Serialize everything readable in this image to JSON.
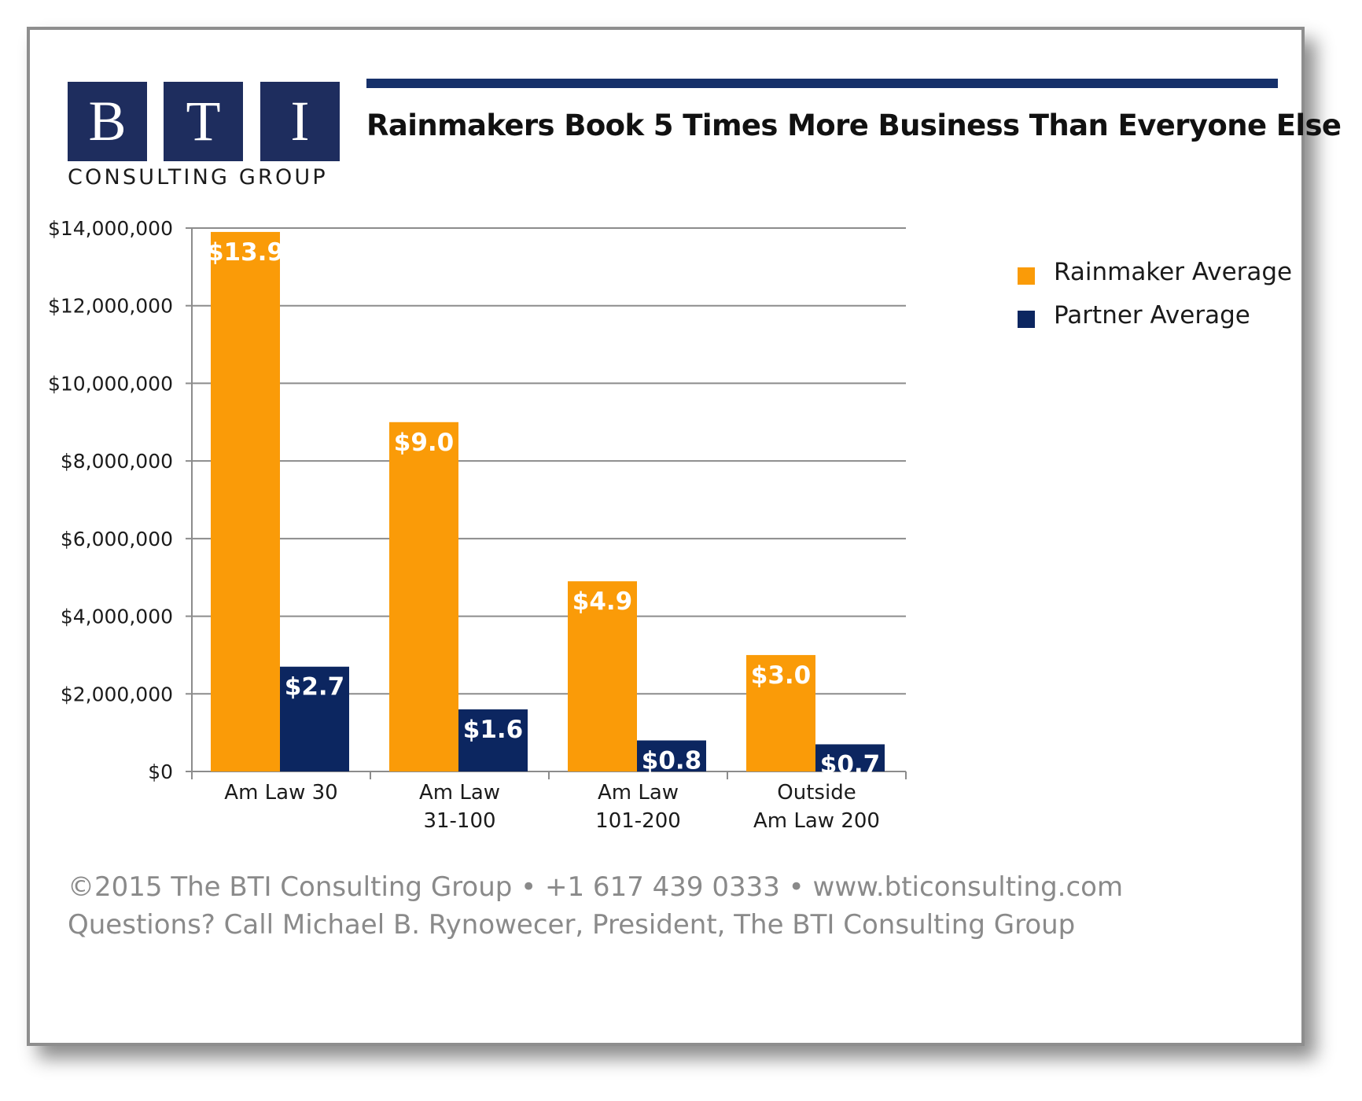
{
  "logo": {
    "letters": [
      "B",
      "T",
      "I"
    ],
    "subtitle": "CONSULTING GROUP",
    "box_color": "#1e2d5e"
  },
  "title": "Rainmakers Book 5 Times More Business Than Everyone Else",
  "chart_data": {
    "type": "bar",
    "title": "Rainmakers Book 5 Times More Business Than Everyone Else",
    "categories": [
      [
        "Am Law 30"
      ],
      [
        "Am Law",
        "31-100"
      ],
      [
        "Am Law",
        "101-200"
      ],
      [
        "Outside",
        "Am Law 200"
      ]
    ],
    "series": [
      {
        "name": "Rainmaker Average",
        "color": "#fa9b08",
        "values": [
          13900000,
          9000000,
          4900000,
          3000000
        ],
        "labels": [
          "$13.9",
          "$9.0",
          "$4.9",
          "$3.0"
        ]
      },
      {
        "name": "Partner Average",
        "color": "#0c2660",
        "values": [
          2700000,
          1600000,
          800000,
          700000
        ],
        "labels": [
          "$2.7",
          "$1.6",
          "$0.8",
          "$0.7"
        ]
      }
    ],
    "ylim": [
      0,
      14000000
    ],
    "yticks": [
      0,
      2000000,
      4000000,
      6000000,
      8000000,
      10000000,
      12000000,
      14000000
    ],
    "ytick_labels": [
      "$0",
      "$2,000,000",
      "$4,000,000",
      "$6,000,000",
      "$8,000,000",
      "$10,000,000",
      "$12,000,000",
      "$14,000,000"
    ],
    "xlabel": "",
    "ylabel": "",
    "grid": true,
    "legend_position": "top-right"
  },
  "footer": {
    "line1": "©2015 The BTI Consulting Group  •  +1 617 439 0333  •  www.bticonsulting.com",
    "line2": "Questions? Call Michael B. Rynowecer, President, The BTI Consulting Group"
  }
}
